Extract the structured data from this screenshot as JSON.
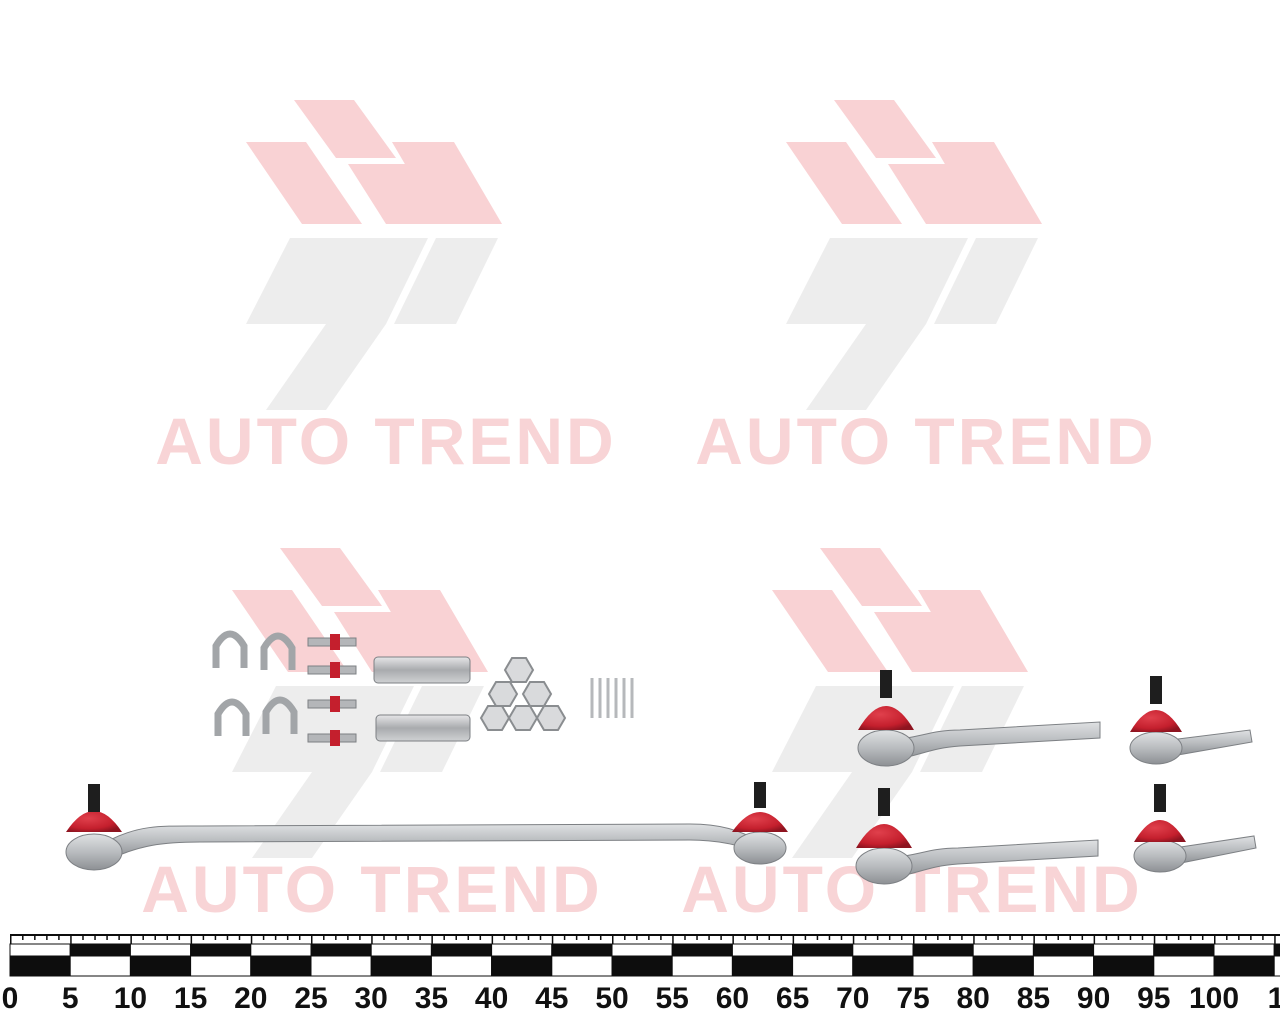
{
  "watermark": {
    "text": "AUTO TREND",
    "colors": {
      "red": "#f9d2d4",
      "grey": "#ededed",
      "text": "#f8d4d6"
    }
  },
  "parts": {
    "colors": {
      "boot": "#c8202f",
      "metal": "#b8babd",
      "stud": "#1e1e1e"
    },
    "items": [
      {
        "name": "center-drag-link",
        "count": 1
      },
      {
        "name": "long-tie-rod-end",
        "count": 2
      },
      {
        "name": "short-tie-rod-end",
        "count": 2
      },
      {
        "name": "u-clamp",
        "count": 4
      },
      {
        "name": "clamp-bolt",
        "count": 4
      },
      {
        "name": "adjusting-sleeve",
        "count": 2
      },
      {
        "name": "castle-nut",
        "count": 6
      },
      {
        "name": "cotter-pin",
        "count": 6
      }
    ]
  },
  "ruler": {
    "labels": [
      "0",
      "5",
      "10",
      "15",
      "20",
      "25",
      "30",
      "35",
      "40",
      "45",
      "50",
      "55",
      "60",
      "65",
      "70",
      "75",
      "80",
      "85",
      "90",
      "95",
      "100",
      "1"
    ],
    "colors": {
      "dark": "#0d0d0d",
      "light": "#ffffff"
    }
  }
}
